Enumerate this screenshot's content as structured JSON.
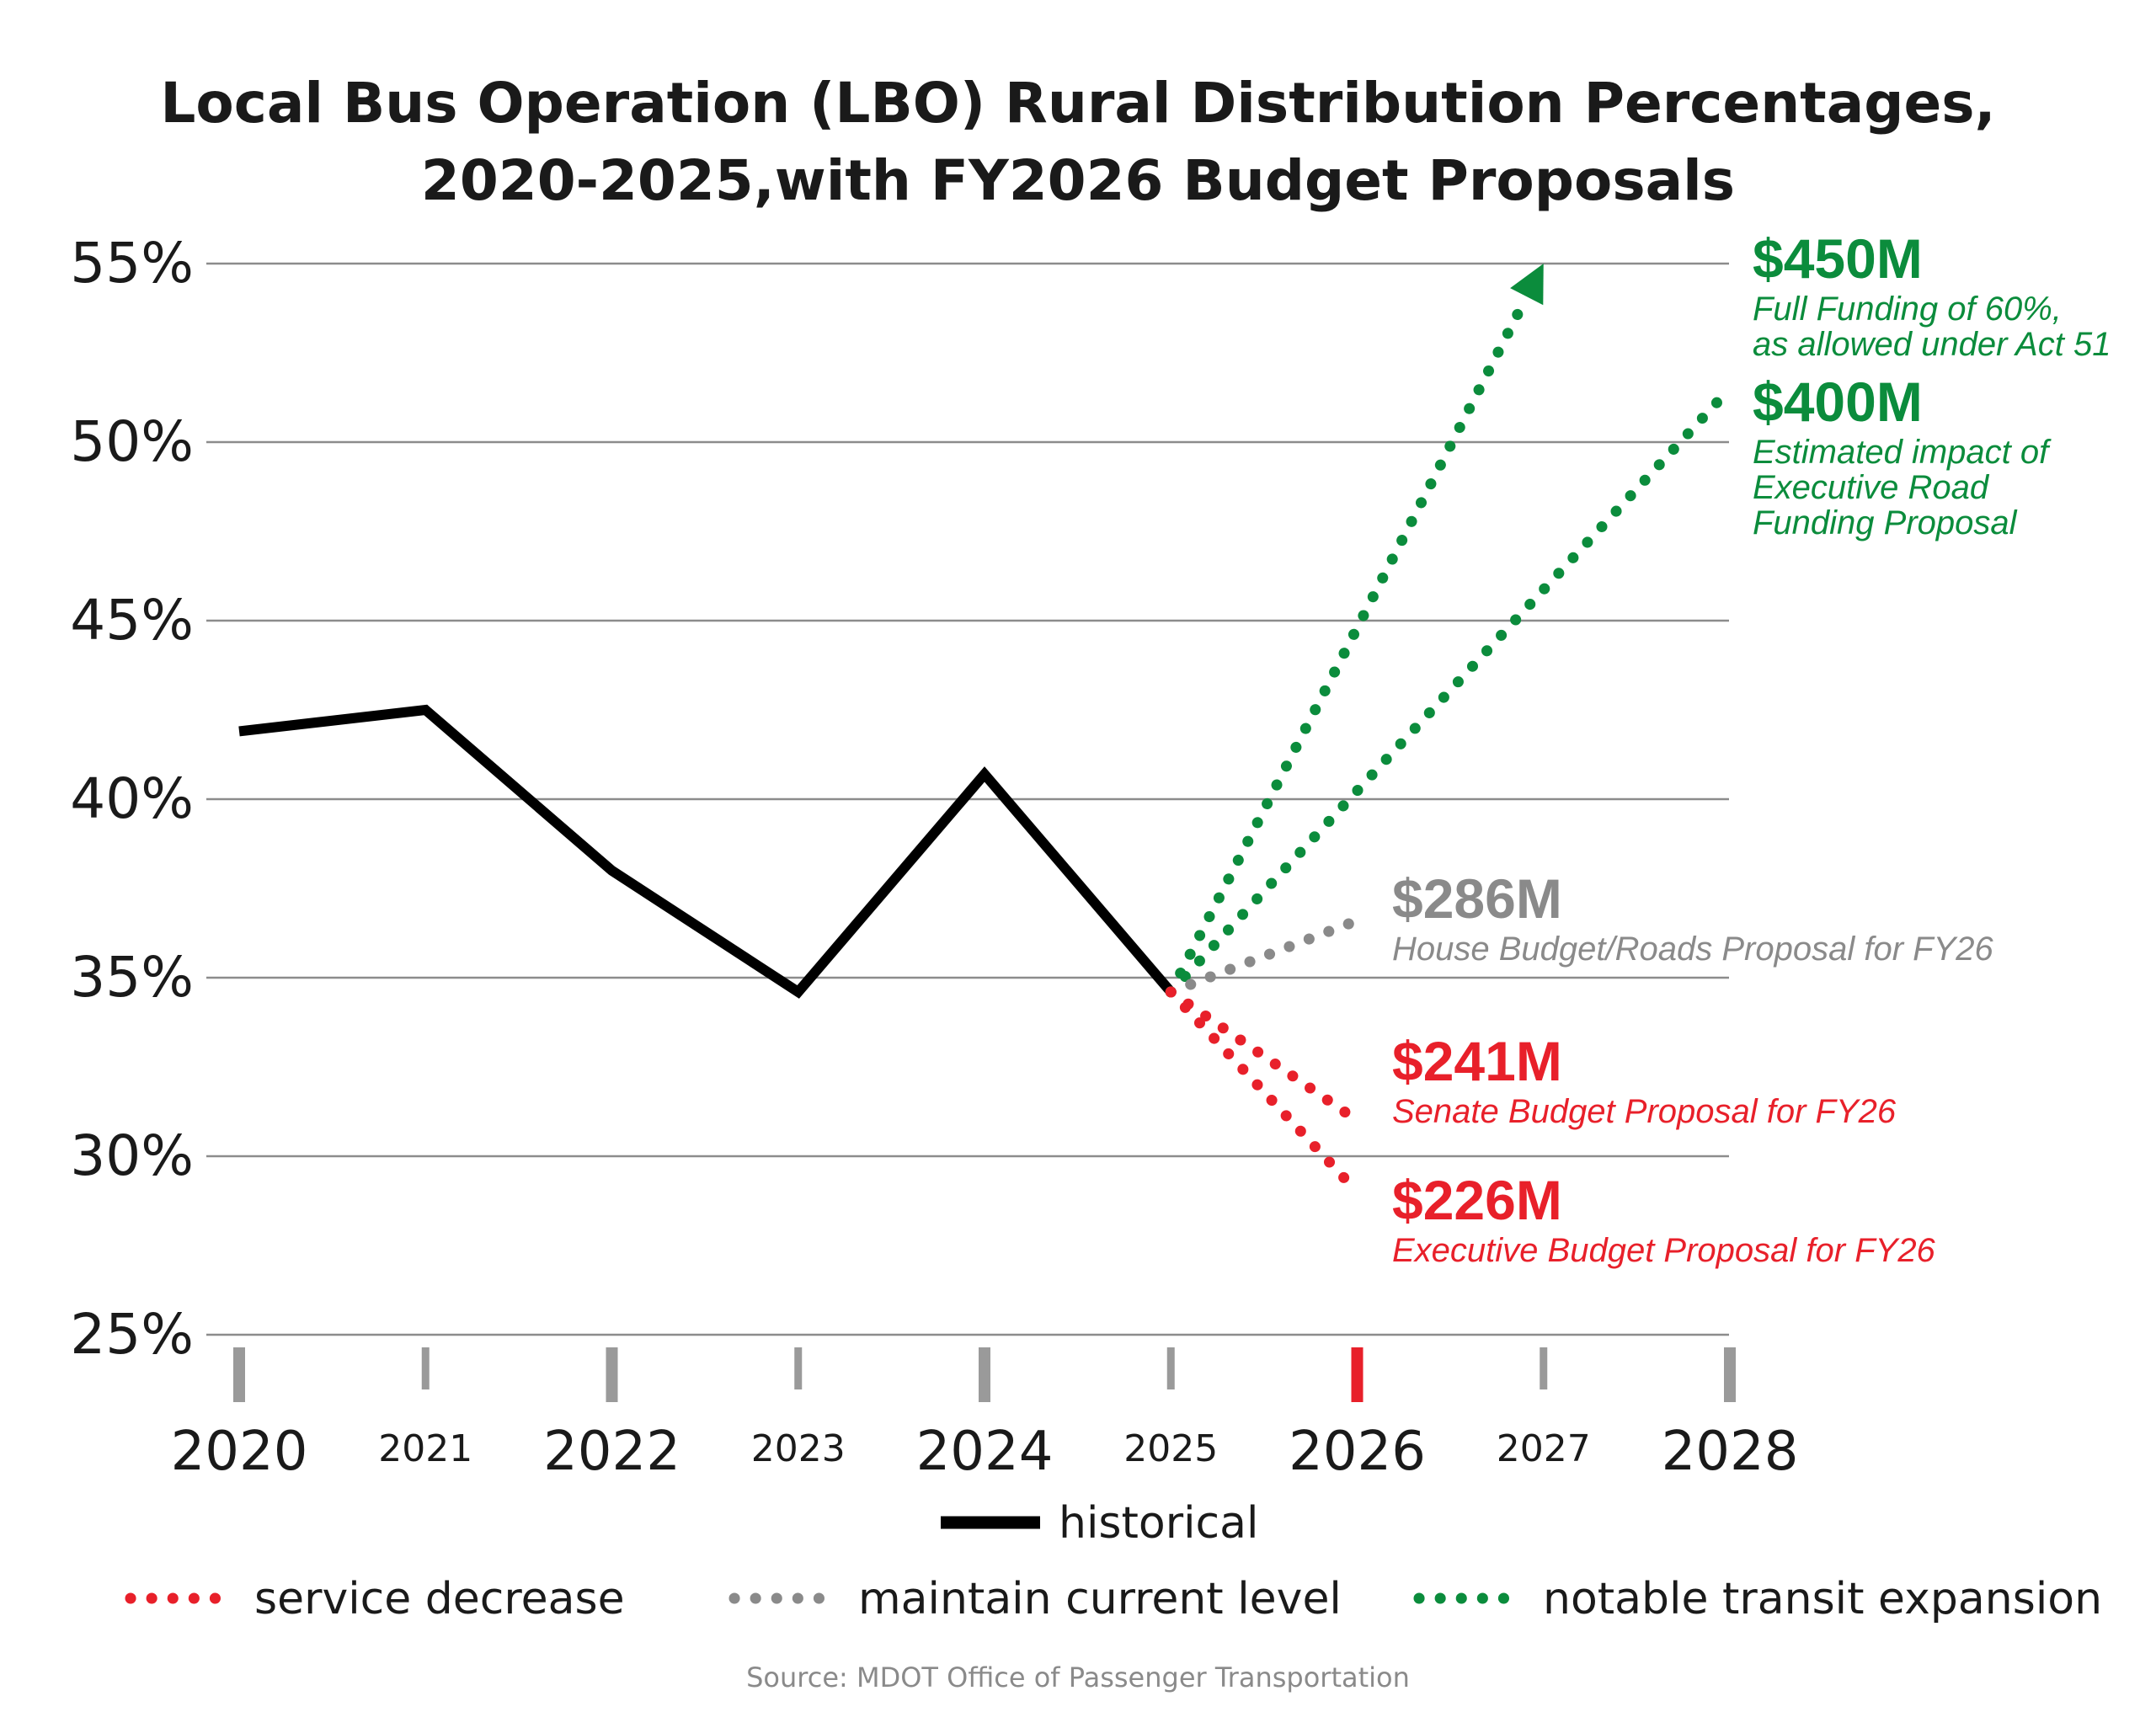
{
  "chart_data": {
    "type": "line",
    "title_lines": [
      "Local Bus Operation (LBO) Rural Distribution Percentages,",
      "2020-2025,with FY2026 Budget Proposals"
    ],
    "xlabel": "",
    "ylabel": "",
    "ylim": [
      25,
      55
    ],
    "xlim": [
      2020,
      2028
    ],
    "grid": true,
    "yticks": [
      {
        "value": 55,
        "label": "55%"
      },
      {
        "value": 50,
        "label": "50%"
      },
      {
        "value": 45,
        "label": "45%"
      },
      {
        "value": 40,
        "label": "40%"
      },
      {
        "value": 35,
        "label": "35%"
      },
      {
        "value": 30,
        "label": "30%"
      },
      {
        "value": 25,
        "label": "25%"
      }
    ],
    "xticks": [
      {
        "value": 2020,
        "label": "2020",
        "major": true,
        "highlight": false
      },
      {
        "value": 2021,
        "label": "2021",
        "major": false,
        "highlight": false
      },
      {
        "value": 2022,
        "label": "2022",
        "major": true,
        "highlight": false
      },
      {
        "value": 2023,
        "label": "2023",
        "major": false,
        "highlight": false
      },
      {
        "value": 2024,
        "label": "2024",
        "major": true,
        "highlight": false
      },
      {
        "value": 2025,
        "label": "2025",
        "major": false,
        "highlight": false
      },
      {
        "value": 2026,
        "label": "2026",
        "major": true,
        "highlight": true
      },
      {
        "value": 2027,
        "label": "2027",
        "major": false,
        "highlight": false
      },
      {
        "value": 2028,
        "label": "2028",
        "major": true,
        "highlight": false
      }
    ],
    "series": [
      {
        "name": "historical",
        "category": "historical",
        "style": "solid",
        "color": "#000000",
        "points": [
          [
            2020,
            41.9
          ],
          [
            2021,
            42.5
          ],
          [
            2022,
            38.0
          ],
          [
            2023,
            34.6
          ],
          [
            2024,
            40.7
          ],
          [
            2025,
            34.6
          ]
        ]
      },
      {
        "label_value": "$450M",
        "label_desc": [
          "Full Funding of 60%,",
          "as allowed under Act 51"
        ],
        "category": "notable transit expansion",
        "style": "dotted",
        "arrow": true,
        "color": "#0b8c3c",
        "points": [
          [
            2025,
            34.6
          ],
          [
            2027,
            55.0
          ]
        ]
      },
      {
        "label_value": "$400M",
        "label_desc": [
          "Estimated impact of",
          "Executive Road",
          "Funding Proposal"
        ],
        "category": "notable transit expansion",
        "style": "dotted",
        "color": "#0b8c3c",
        "points": [
          [
            2025,
            34.6
          ],
          [
            2028,
            51.5
          ]
        ]
      },
      {
        "label_value": "$286M",
        "label_desc": [
          "House Budget/Roads Proposal for FY26"
        ],
        "category": "maintain current level",
        "style": "dotted",
        "color": "#8a8a8a",
        "points": [
          [
            2025,
            34.6
          ],
          [
            2026,
            36.6
          ]
        ]
      },
      {
        "label_value": "$241M",
        "label_desc": [
          "Senate Budget Proposal for FY26"
        ],
        "category": "service decrease",
        "style": "dotted",
        "color": "#e8202a",
        "points": [
          [
            2025,
            34.6
          ],
          [
            2026,
            31.0
          ]
        ]
      },
      {
        "label_value": "$226M",
        "label_desc": [
          "Executive Budget Proposal for FY26"
        ],
        "category": "service decrease",
        "style": "dotted",
        "color": "#e8202a",
        "points": [
          [
            2025,
            34.6
          ],
          [
            2026,
            29.0
          ]
        ]
      }
    ],
    "legend": [
      {
        "label": "historical",
        "style": "solid",
        "color": "#000000"
      },
      {
        "label": "service decrease",
        "style": "dotted",
        "color": "#e8202a"
      },
      {
        "label": "maintain current level",
        "style": "dotted",
        "color": "#8a8a8a"
      },
      {
        "label": "notable transit expansion",
        "style": "dotted",
        "color": "#0b8c3c"
      }
    ],
    "legend_placement": "bottom",
    "source": "Source: MDOT Office of Passenger Transportation",
    "colors": {
      "gridline": "#8c8c8c",
      "tick_major": "#9a9a9a",
      "tick_highlight": "#e8202a",
      "text": "#1a1a1a"
    }
  }
}
